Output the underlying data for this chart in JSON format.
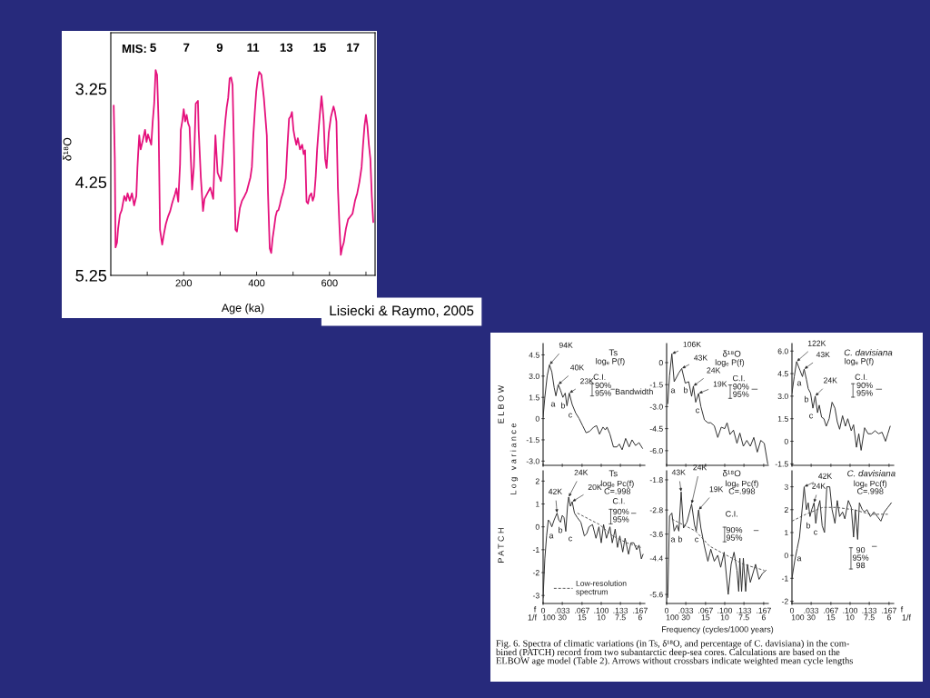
{
  "chart_data": [
    {
      "type": "line",
      "xlabel": "Age (ka)",
      "ylabel": "δ¹⁸O",
      "x2label": "MIS:",
      "x": [
        8,
        11,
        13,
        17,
        20,
        25,
        30,
        37,
        42,
        46,
        52,
        58,
        64,
        70,
        73,
        75,
        78,
        82,
        88,
        94,
        98,
        102,
        107,
        111,
        115,
        119,
        123,
        125,
        127,
        131,
        135,
        141,
        146,
        151,
        157,
        163,
        168,
        172,
        176,
        180,
        185,
        190,
        192,
        196,
        200,
        204,
        208,
        212,
        216,
        220,
        223,
        228,
        233,
        239,
        241,
        247,
        253,
        257,
        265,
        273,
        281,
        287,
        293,
        302,
        306,
        310,
        314,
        318,
        322,
        326,
        330,
        334,
        338,
        342,
        346,
        350,
        354,
        360,
        367,
        373,
        379,
        383,
        387,
        391,
        395,
        399,
        403,
        407,
        413,
        420,
        424,
        428,
        431,
        436,
        440,
        444,
        448,
        452,
        456,
        460,
        464,
        468,
        472,
        476,
        480,
        484,
        489,
        493,
        497,
        501,
        505,
        509,
        513,
        519,
        525,
        529,
        533,
        537,
        541,
        545,
        550,
        554,
        558,
        562,
        566,
        570,
        574,
        578,
        581,
        584,
        588,
        592,
        598,
        604,
        611,
        615,
        619,
        623,
        627,
        631,
        635,
        639,
        645,
        651,
        657,
        663,
        670,
        676,
        682,
        688,
        692,
        696,
        700,
        704,
        708,
        712,
        716,
        720
      ],
      "series": [
        {
          "color": "#e5127d",
          "values": [
            3.43,
            4.0,
            4.95,
            4.9,
            4.75,
            4.6,
            4.55,
            4.4,
            4.45,
            4.37,
            4.45,
            4.37,
            4.5,
            4.4,
            4.1,
            3.95,
            3.75,
            3.9,
            3.8,
            3.69,
            3.82,
            3.74,
            3.8,
            3.85,
            3.6,
            3.41,
            3.05,
            3.08,
            3.1,
            3.6,
            4.76,
            4.92,
            4.8,
            4.7,
            4.62,
            4.56,
            4.48,
            4.43,
            4.38,
            4.32,
            4.46,
            4.06,
            3.69,
            3.6,
            3.47,
            3.6,
            3.53,
            3.62,
            3.66,
            4.04,
            4.33,
            4.08,
            3.41,
            3.38,
            3.69,
            4.2,
            4.56,
            4.43,
            4.37,
            4.31,
            4.43,
            3.75,
            4.15,
            4.24,
            4.05,
            3.8,
            3.6,
            3.45,
            3.35,
            3.14,
            3.13,
            3.21,
            3.91,
            4.76,
            4.78,
            4.65,
            4.53,
            4.45,
            4.4,
            4.35,
            4.26,
            4.2,
            4.09,
            3.75,
            3.5,
            3.28,
            3.15,
            3.07,
            3.1,
            3.35,
            3.55,
            3.75,
            4.34,
            4.96,
            5.01,
            4.85,
            4.74,
            4.62,
            4.56,
            4.55,
            4.49,
            4.42,
            4.37,
            4.3,
            4.21,
            3.9,
            3.57,
            3.55,
            3.5,
            3.69,
            3.78,
            3.85,
            3.78,
            3.9,
            3.85,
            3.95,
            3.91,
            4.46,
            4.48,
            4.4,
            4.37,
            4.45,
            4.4,
            4.2,
            3.9,
            3.69,
            3.5,
            3.33,
            3.45,
            3.6,
            4.0,
            4.1,
            3.72,
            3.55,
            3.44,
            3.5,
            3.6,
            4.31,
            4.7,
            5.03,
            4.95,
            4.9,
            4.75,
            4.65,
            4.62,
            4.59,
            4.45,
            4.37,
            4.25,
            4.09,
            3.85,
            3.65,
            3.53,
            3.65,
            3.85,
            4.0,
            4.4,
            4.68
          ]
        }
      ],
      "xlim": [
        0,
        725
      ],
      "ylim": [
        5.25,
        2.65
      ],
      "xticks": [
        {
          "value": 100,
          "label": null
        },
        200,
        {
          "value": 300,
          "label": null
        },
        400,
        {
          "value": 500,
          "label": null
        },
        600,
        {
          "value": 700,
          "label": null
        }
      ],
      "yticks": [
        3.25,
        4.25,
        5.25
      ],
      "x2lim": [
        2.46,
        18.33
      ],
      "x2ticks": [
        5,
        7,
        9,
        11,
        13,
        15,
        17
      ],
      "annotations": [
        "Lisiecki & Raymo, 2005"
      ]
    },
    {
      "type": "line",
      "title": "Ts",
      "subtitle": "logₑ P(f)",
      "ylabel": "E L B O W",
      "series": [
        {
          "color": "#2b2b2b",
          "x": [
            0.0,
            0.003,
            0.007,
            0.011,
            0.015,
            0.019,
            0.022,
            0.026,
            0.03,
            0.034,
            0.038,
            0.041,
            0.045,
            0.05,
            0.056,
            0.062,
            0.068,
            0.074,
            0.08,
            0.087,
            0.092,
            0.097,
            0.103,
            0.107,
            0.11,
            0.115,
            0.121,
            0.127,
            0.131,
            0.136,
            0.142,
            0.148,
            0.153,
            0.159,
            0.165,
            0.171
          ],
          "values": [
            0.1,
            1.5,
            3.0,
            3.8,
            3.3,
            2.2,
            1.6,
            2.4,
            2.0,
            1.5,
            1.8,
            0.9,
            1.8,
            1.0,
            0.4,
            0.0,
            -0.5,
            -1.0,
            -0.9,
            -0.6,
            -0.5,
            -1.1,
            -0.6,
            -0.8,
            -0.6,
            -1.1,
            -2.0,
            -2.0,
            -1.8,
            -2.2,
            -1.4,
            -2.0,
            -1.5,
            -1.9,
            -1.7,
            -2.1
          ]
        }
      ],
      "xlim": [
        0,
        0.175
      ],
      "ylim": [
        -3.3,
        5.3
      ],
      "xticks": [
        {
          "value": 0,
          "label": null
        },
        {
          "value": 0.033,
          "label": null
        },
        {
          "value": 0.067,
          "label": null
        },
        {
          "value": 0.1,
          "label": null
        },
        {
          "value": 0.133,
          "label": null
        },
        {
          "value": 0.167,
          "label": null
        }
      ],
      "yticks": [
        4.5,
        {
          "value": 3,
          "label": "3.0"
        },
        1.5,
        0,
        -1.5,
        {
          "value": -3,
          "label": "-3.0"
        }
      ],
      "tick_labels": "y",
      "annotations": [
        {
          "text": "94K",
          "x": 0.011,
          "y": 3.8
        },
        {
          "text": "40K",
          "x": 0.026,
          "y": 2.4
        },
        {
          "text": "23K",
          "x": 0.045,
          "y": 1.8
        },
        "a",
        "b",
        "c",
        "C.I.",
        "90%\n95%",
        "Bandwidth"
      ]
    },
    {
      "type": "line",
      "title": "δ¹⁸O",
      "subtitle": "logₑ P(f)",
      "series": [
        {
          "color": "#2b2b2b",
          "x": [
            0.002,
            0.005,
            0.009,
            0.013,
            0.021,
            0.026,
            0.032,
            0.038,
            0.043,
            0.046,
            0.05,
            0.055,
            0.059,
            0.065,
            0.071,
            0.076,
            0.082,
            0.088,
            0.094,
            0.1,
            0.104,
            0.109,
            0.115,
            0.121,
            0.126,
            0.132,
            0.138,
            0.144,
            0.15,
            0.156,
            0.162,
            0.168,
            0.174
          ],
          "values": [
            -2.8,
            -0.9,
            0.6,
            -1.3,
            -0.7,
            -0.4,
            -1.4,
            -1.3,
            -2.3,
            -1.6,
            -2.7,
            -2.1,
            -3.0,
            -3.9,
            -4.1,
            -4.1,
            -4.3,
            -5.1,
            -4.4,
            -4.5,
            -4.1,
            -4.9,
            -4.6,
            -5.5,
            -4.8,
            -5.7,
            -5.3,
            -5.7,
            -5.1,
            -6.1,
            -5.3,
            -5.5,
            -6.9
          ]
        }
      ],
      "xlim": [
        0,
        0.175
      ],
      "ylim": [
        -7.0,
        1.3
      ],
      "xticks": [
        {
          "value": 0,
          "label": null
        },
        {
          "value": 0.033,
          "label": null
        },
        {
          "value": 0.067,
          "label": null
        },
        {
          "value": 0.1,
          "label": null
        },
        {
          "value": 0.133,
          "label": null
        },
        {
          "value": 0.167,
          "label": null
        }
      ],
      "yticks": [
        0,
        -1.5,
        {
          "value": -3,
          "label": "-3.0"
        },
        -4.5,
        {
          "value": -6,
          "label": "-6.0"
        }
      ],
      "tick_labels": "y",
      "annotations": [
        {
          "text": "106K",
          "x": 0.009,
          "y": 0.6
        },
        {
          "text": "43K",
          "x": 0.026,
          "y": -0.4
        },
        {
          "text": "24K",
          "x": 0.046,
          "y": -1.6
        },
        {
          "text": "19K",
          "x": 0.055,
          "y": -2.1
        },
        "a",
        "b",
        "c",
        "C.I.",
        "90%\n95%"
      ]
    },
    {
      "type": "line",
      "title": "C. davisiana",
      "subtitle": "logₑ P(f)",
      "series": [
        {
          "color": "#2b2b2b",
          "x": [
            0.0,
            0.004,
            0.008,
            0.014,
            0.018,
            0.021,
            0.025,
            0.028,
            0.032,
            0.036,
            0.04,
            0.044,
            0.047,
            0.051,
            0.055,
            0.059,
            0.064,
            0.069,
            0.074,
            0.078,
            0.082,
            0.087,
            0.092,
            0.096,
            0.102,
            0.106,
            0.111,
            0.115,
            0.119,
            0.125,
            0.131,
            0.137,
            0.143,
            0.149,
            0.155,
            0.161,
            0.165,
            0.169
          ],
          "values": [
            3.2,
            4.3,
            5.3,
            4.7,
            4.3,
            4.8,
            4.1,
            3.5,
            3.2,
            2.2,
            3.0,
            1.9,
            2.4,
            1.6,
            1.5,
            1.0,
            1.5,
            2.6,
            2.2,
            1.3,
            0.8,
            1.7,
            1.0,
            1.5,
            0.7,
            1.1,
            -0.4,
            0.5,
            -0.6,
            0.9,
            0.5,
            0.5,
            0.7,
            0.5,
            0.6,
            0.0,
            0.5,
            1.0
          ]
        }
      ],
      "xlim": [
        0,
        0.175
      ],
      "ylim": [
        -1.6,
        6.5
      ],
      "xticks": [
        {
          "value": 0,
          "label": null
        },
        {
          "value": 0.033,
          "label": null
        },
        {
          "value": 0.067,
          "label": null
        },
        {
          "value": 0.1,
          "label": null
        },
        {
          "value": 0.133,
          "label": null
        },
        {
          "value": 0.167,
          "label": null
        }
      ],
      "yticks": [
        {
          "value": 6,
          "label": "6.0"
        },
        4.5,
        {
          "value": 3,
          "label": "3.0"
        },
        1.5,
        0,
        -1.5
      ],
      "tick_labels": "y",
      "annotations": [
        {
          "text": "122K",
          "x": 0.008,
          "y": 5.3
        },
        {
          "text": "43K",
          "x": 0.021,
          "y": 4.8
        },
        {
          "text": "24K",
          "x": 0.04,
          "y": 3.0
        },
        "a",
        "b",
        "c",
        "C.I.",
        "90%\n95%"
      ]
    },
    {
      "type": "line",
      "title": "Ts",
      "subtitle": "logₑ Pc(f)\nC=.998",
      "ylabel": "P A T C H",
      "xlabel": "f",
      "series": [
        {
          "color": "#2b2b2b",
          "x": [
            0.0,
            0.003,
            0.006,
            0.009,
            0.012,
            0.015,
            0.019,
            0.024,
            0.027,
            0.03,
            0.033,
            0.036,
            0.039,
            0.042,
            0.044,
            0.047,
            0.05,
            0.054,
            0.059,
            0.065,
            0.071,
            0.075,
            0.079,
            0.085,
            0.091,
            0.096,
            0.1,
            0.104,
            0.109,
            0.115,
            0.119,
            0.124,
            0.128,
            0.132,
            0.137,
            0.141,
            0.147,
            0.151,
            0.156,
            0.161,
            0.165,
            0.169,
            0.172
          ],
          "values": [
            -3.1,
            -1.4,
            -0.4,
            0.3,
            0.2,
            0.0,
            0.3,
            0.6,
            0.3,
            0.2,
            0.5,
            0.4,
            -0.2,
            0.9,
            1.3,
            0.9,
            1.1,
            0.6,
            0.4,
            0.2,
            -0.4,
            -0.3,
            0.0,
            0.1,
            -0.5,
            0.0,
            -0.7,
            0.1,
            -0.5,
            0.0,
            -0.7,
            -0.1,
            -0.9,
            -0.4,
            -1.1,
            -0.5,
            -1.2,
            -0.7,
            -0.7,
            -1.0,
            -0.8,
            -1.4,
            -1.2
          ]
        },
        {
          "name": "Low-resolution\nspectrum",
          "color": "#555555",
          "line_style": "dashed",
          "x": [
            0.059,
            0.097,
            0.12,
            0.144,
            0.168
          ],
          "values": [
            0.6,
            0.1,
            -0.4,
            -0.7,
            -0.9
          ]
        }
      ],
      "xlim": [
        0,
        0.175
      ],
      "ylim": [
        -3.35,
        2.45
      ],
      "xticks": [
        {
          "value": 0,
          "label": "0"
        },
        {
          "value": 0.033,
          "label": ".033"
        },
        {
          "value": 0.067,
          "label": ".067"
        },
        {
          "value": 0.1,
          "label": ".100"
        },
        {
          "value": 0.133,
          "label": ".133"
        },
        {
          "value": 0.167,
          "label": ".167"
        }
      ],
      "yticks": [
        2,
        1,
        0,
        -1,
        -2,
        -3
      ],
      "legend": "bottom left",
      "annotations": [
        {
          "text": "42K",
          "x": 0.024,
          "y": 0.6
        },
        {
          "text": "24K",
          "x": 0.044,
          "y": 1.3
        },
        {
          "text": "20K",
          "x": 0.05,
          "y": 1.1
        },
        "a",
        "b",
        "c",
        "C.I.",
        "90%\n95%",
        "L o g   v a r i a n c e",
        "1/f",
        "100",
        "30",
        "15",
        "10",
        "7.5",
        "6"
      ]
    },
    {
      "type": "line",
      "title": "δ¹⁸O",
      "subtitle": "logₑ Pc(f)\nC=.998",
      "xlabel": "Frequency (cycles/1000 years)",
      "series": [
        {
          "color": "#2b2b2b",
          "x": [
            0.002,
            0.005,
            0.009,
            0.013,
            0.018,
            0.021,
            0.025,
            0.029,
            0.035,
            0.043,
            0.048,
            0.051,
            0.055,
            0.059,
            0.065,
            0.071,
            0.076,
            0.082,
            0.088,
            0.093,
            0.099,
            0.106,
            0.111,
            0.116,
            0.121,
            0.124,
            0.126,
            0.129,
            0.132,
            0.136,
            0.139,
            0.144,
            0.153,
            0.159,
            0.165,
            0.171
          ],
          "values": [
            -5.7,
            -3.0,
            -2.9,
            -3.5,
            -3.3,
            -3.5,
            -2.2,
            -3.4,
            -3.2,
            -2.6,
            -3.3,
            -3.5,
            -2.8,
            -3.4,
            -4.0,
            -4.5,
            -4.1,
            -4.5,
            -4.3,
            -4.7,
            -4.2,
            -5.6,
            -4.6,
            -4.2,
            -4.8,
            -5.5,
            -4.4,
            -5.5,
            -4.4,
            -5.5,
            -4.6,
            -5.2,
            -4.6,
            -5.1,
            -4.9,
            -4.8
          ]
        },
        {
          "color": "#555555",
          "line_style": "dashed",
          "x": [
            0.009,
            0.05,
            0.074,
            0.103,
            0.132,
            0.168
          ],
          "values": [
            -3.1,
            -3.5,
            -4.0,
            -4.3,
            -4.6,
            -4.8
          ]
        }
      ],
      "xlim": [
        0,
        0.175
      ],
      "ylim": [
        -5.9,
        -1.5
      ],
      "xticks": [
        {
          "value": 0,
          "label": "0"
        },
        {
          "value": 0.033,
          "label": ".033"
        },
        {
          "value": 0.067,
          "label": ".067"
        },
        {
          "value": 0.1,
          "label": ".100"
        },
        {
          "value": 0.133,
          "label": ".133"
        },
        {
          "value": 0.167,
          "label": ".167"
        }
      ],
      "yticks": [
        -1.8,
        -2.8,
        -3.6,
        -4.4,
        -5.6
      ],
      "annotations": [
        {
          "text": "43K",
          "x": 0.025,
          "y": -2.2
        },
        {
          "text": "24K",
          "x": 0.043,
          "y": -2.6
        },
        {
          "text": "19K",
          "x": 0.055,
          "y": -2.8
        },
        "a",
        "b",
        "c",
        "C.I.",
        "90%\n95%",
        "100",
        "30",
        "15",
        "10",
        "7.5",
        "6"
      ]
    },
    {
      "type": "line",
      "title": "C. davisiana",
      "subtitle": "logₑ Pc(f)\nC=.998",
      "xlabel": "f",
      "series": [
        {
          "color": "#2b2b2b",
          "x": [
            0.0,
            0.005,
            0.009,
            0.013,
            0.016,
            0.021,
            0.025,
            0.028,
            0.031,
            0.034,
            0.038,
            0.041,
            0.044,
            0.048,
            0.052,
            0.056,
            0.06,
            0.065,
            0.069,
            0.074,
            0.078,
            0.082,
            0.087,
            0.091,
            0.097,
            0.102,
            0.106,
            0.109,
            0.113,
            0.116,
            0.121,
            0.125,
            0.129,
            0.135,
            0.141,
            0.147,
            0.153,
            0.159,
            0.165,
            0.171
          ],
          "values": [
            -1.0,
            -0.2,
            0.3,
            0.8,
            1.6,
            3.0,
            2.0,
            2.3,
            1.7,
            2.0,
            2.3,
            1.4,
            2.0,
            2.4,
            1.3,
            1.0,
            3.0,
            3.0,
            2.0,
            1.4,
            2.4,
            1.7,
            1.9,
            1.6,
            2.4,
            2.1,
            0.8,
            2.0,
            0.7,
            2.3,
            2.0,
            1.9,
            2.0,
            1.7,
            1.9,
            1.7,
            1.5,
            1.9,
            2.1,
            2.3
          ]
        },
        {
          "color": "#555555",
          "line_style": "dashed",
          "x": [
            0.0,
            0.024,
            0.053,
            0.076,
            0.106,
            0.135,
            0.165
          ],
          "values": [
            1.5,
            1.8,
            2.1,
            2.1,
            2.0,
            1.8,
            1.8
          ]
        }
      ],
      "xlim": [
        0,
        0.175
      ],
      "ylim": [
        -2.1,
        3.7
      ],
      "xticks": [
        {
          "value": 0,
          "label": "0"
        },
        {
          "value": 0.033,
          "label": ".033"
        },
        {
          "value": 0.067,
          "label": ".067"
        },
        {
          "value": 0.1,
          "label": ".100"
        },
        {
          "value": 0.133,
          "label": ".133"
        },
        {
          "value": 0.167,
          "label": ".167"
        }
      ],
      "yticks": [
        3,
        2,
        1,
        0,
        -1,
        -2
      ],
      "annotations": [
        {
          "text": "42K",
          "x": 0.021,
          "y": 3.0
        },
        {
          "text": "24K",
          "x": 0.038,
          "y": 2.3
        },
        "a",
        "b",
        "c",
        "90\n95%\n98",
        "1/f",
        "100",
        "30",
        "15",
        "10",
        "7.5",
        "6"
      ]
    },
    {
      "type": "other",
      "annotations": [
        "Fig. 6. Spectra of climatic variations (in Ts, δ¹⁸O, and percentage of C. davisiana) in the com-\nbined (PATCH) record from two subantarctic deep-sea cores. Calculations are based on the\nELBOW age model (Table 2). Arrows without crossbars indicate weighted mean cycle lengths"
      ]
    }
  ]
}
